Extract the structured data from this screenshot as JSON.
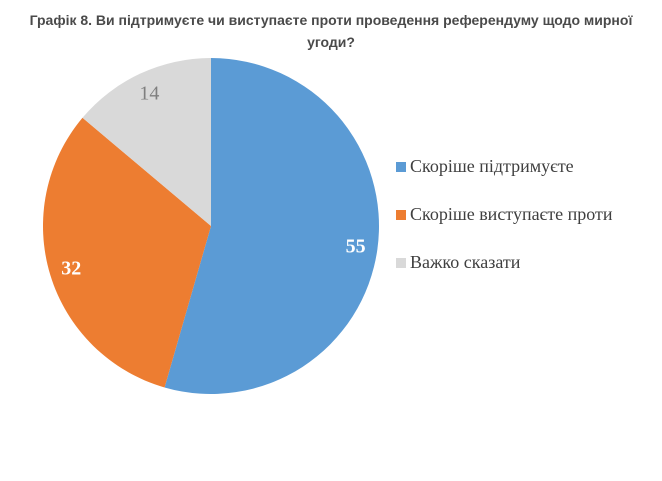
{
  "chart_data": {
    "type": "pie",
    "title": "Графік 8. Ви підтримуєте чи виступаєте проти проведення референдуму щодо мирної угоди?",
    "slices": [
      {
        "label": "Скоріше підтримуєте",
        "value": 55,
        "color": "#5B9BD5",
        "label_color": "#FFFFFF"
      },
      {
        "label": "Скоріше виступаєте проти",
        "value": 32,
        "color": "#ED7D31",
        "label_color": "#FFFFFF"
      },
      {
        "label": "Важко сказати",
        "value": 14,
        "color": "#D9D9D9",
        "label_color": "#7F7F7F"
      }
    ],
    "start_angle_deg": 0,
    "direction": "clockwise",
    "legend_position": "right",
    "background": "#FFFFFF"
  }
}
